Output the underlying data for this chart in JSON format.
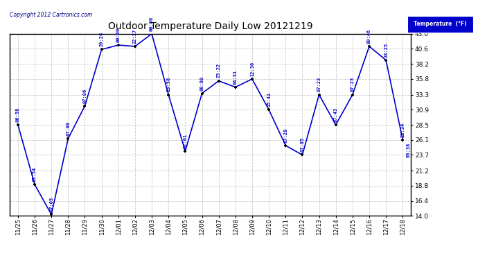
{
  "title": "Outdoor Temperature Daily Low 20121219",
  "copyright": "Copyright 2012 Cartronics.com",
  "legend_label": "Temperature  (°F)",
  "xlabels": [
    "11/25",
    "11/26",
    "11/27",
    "11/28",
    "11/29",
    "11/30",
    "12/01",
    "12/02",
    "12/03",
    "12/04",
    "12/05",
    "12/06",
    "12/07",
    "12/08",
    "12/09",
    "12/10",
    "12/11",
    "12/12",
    "12/13",
    "12/14",
    "12/15",
    "12/16",
    "12/17",
    "12/18"
  ],
  "x_indices": [
    0,
    1,
    2,
    3,
    4,
    5,
    6,
    7,
    8,
    9,
    10,
    11,
    12,
    13,
    14,
    15,
    16,
    17,
    18,
    19,
    20,
    21,
    22,
    23
  ],
  "y_values": [
    28.5,
    19.0,
    14.2,
    26.3,
    31.5,
    40.5,
    41.2,
    41.0,
    43.0,
    33.3,
    24.3,
    33.5,
    35.5,
    34.5,
    35.8,
    30.9,
    25.2,
    23.7,
    33.3,
    28.5,
    33.3,
    41.0,
    38.8,
    26.1
  ],
  "time_labels": [
    "06:58",
    "23:54",
    "07:05",
    "07:00",
    "07:06",
    "20:26",
    "00:00",
    "22:17",
    "00:00",
    "23:58",
    "07:01",
    "00:00",
    "23:22",
    "04:31",
    "12:30",
    "15:41",
    "07:28",
    "07:05",
    "07:23",
    "07:43",
    "07:23",
    "00:46",
    "23:25",
    "23:34"
  ],
  "extra_label_text": "05:38",
  "extra_label_xi": 23,
  "ylim": [
    14.0,
    43.0
  ],
  "yticks": [
    14.0,
    16.4,
    18.8,
    21.2,
    23.7,
    26.1,
    28.5,
    30.9,
    33.3,
    35.8,
    38.2,
    40.6,
    43.0
  ],
  "line_color": "#0000cc",
  "marker_color": "#000000",
  "bg_color": "#ffffff",
  "grid_color": "#c8c8c8",
  "title_color": "#000000",
  "label_color": "#0000cc",
  "legend_bg": "#0000cc",
  "legend_fg": "#ffffff"
}
